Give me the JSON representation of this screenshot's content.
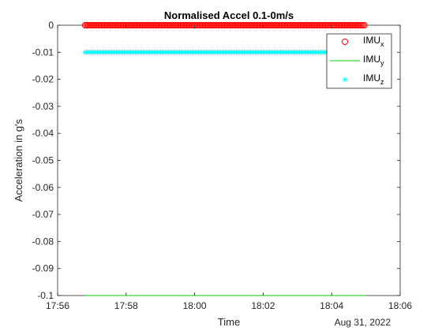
{
  "chart_data": {
    "type": "scatter",
    "title": "Normalised Accel 0.1-0m/s",
    "xlabel": "Time",
    "ylabel": "Acceleration in g's",
    "x_secondary_label": "Aug 31, 2022",
    "x_domain_minutes": [
      1076,
      1086
    ],
    "x_ticks": [
      {
        "value": 1076,
        "label": "17:56"
      },
      {
        "value": 1078,
        "label": "17:58"
      },
      {
        "value": 1080,
        "label": "18:00"
      },
      {
        "value": 1082,
        "label": "18:02"
      },
      {
        "value": 1084,
        "label": "18:04"
      },
      {
        "value": 1086,
        "label": "18:06"
      }
    ],
    "ylim": [
      -0.1,
      0
    ],
    "y_ticks": [
      "0",
      "-0.01",
      "-0.02",
      "-0.03",
      "-0.04",
      "-0.05",
      "-0.06",
      "-0.07",
      "-0.08",
      "-0.09",
      "-0.1"
    ],
    "y_tick_values": [
      0,
      -0.01,
      -0.02,
      -0.03,
      -0.04,
      -0.05,
      -0.06,
      -0.07,
      -0.08,
      -0.09,
      -0.1
    ],
    "grid": false,
    "legend_position": "top-right",
    "series": [
      {
        "name": "IMU",
        "subscript": "x",
        "color": "#ff0000",
        "marker": "o",
        "x_start": 1076.8,
        "x_end": 1085.0,
        "y": 0.0
      },
      {
        "name": "IMU",
        "subscript": "y",
        "color": "#00cc00",
        "marker": "line",
        "x_start": 1076.8,
        "x_end": 1085.0,
        "y": -0.1
      },
      {
        "name": "IMU",
        "subscript": "z",
        "color": "#00ffff",
        "marker": "*",
        "x_start": 1076.8,
        "x_end": 1085.0,
        "y": -0.01
      }
    ]
  }
}
